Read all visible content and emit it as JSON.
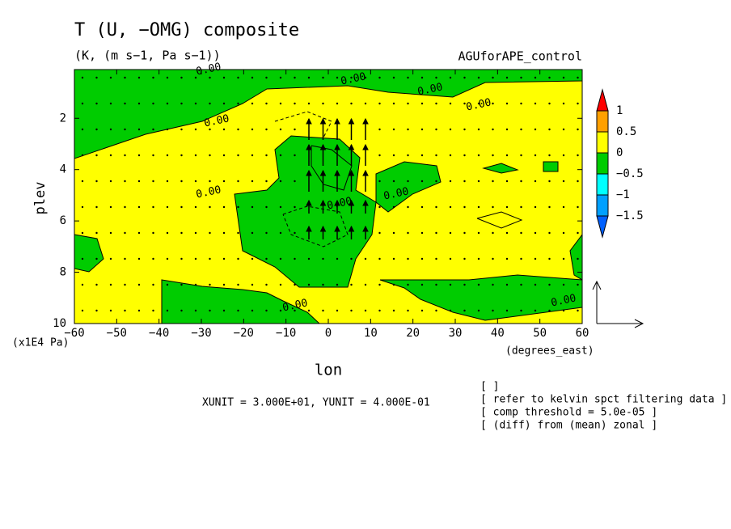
{
  "chart_data": {
    "type": "contour",
    "title": "T (U, −OMG) composite",
    "subtitle": "(K, (m s−1, Pa s−1))",
    "dataset": "AGUforAPE_control",
    "xlabel": "lon",
    "xunit": "(degrees_east)",
    "ylabel": "plev",
    "yunit": "(x1E4 Pa)",
    "xlim": [
      -60,
      60
    ],
    "xticks": [
      {
        "value": -60,
        "label": "−60"
      },
      {
        "value": -50,
        "label": "−50"
      },
      {
        "value": -40,
        "label": "−40"
      },
      {
        "value": -30,
        "label": "−30"
      },
      {
        "value": -20,
        "label": "−20"
      },
      {
        "value": -10,
        "label": "−10"
      },
      0,
      10,
      20,
      30,
      40,
      50,
      60
    ],
    "ylim": [
      10,
      0.1
    ],
    "yticks": [
      2,
      4,
      6,
      8,
      10
    ],
    "colorbar": {
      "levels": [
        1,
        0.5,
        0,
        {
          "value": -0.5,
          "label": "−0.5"
        },
        {
          "value": -1,
          "label": "−1"
        },
        {
          "value": -1.5,
          "label": "−1.5"
        }
      ],
      "colors": [
        "#ff0000",
        "#ffa000",
        "#ffff00",
        "#00cc00",
        "#00ffff",
        "#00a0ff",
        "#0060ff"
      ]
    },
    "contour_labels": {
      "values": [
        0,
        0,
        0,
        0,
        0,
        0,
        0,
        0,
        0,
        0
      ],
      "value_labels": [
        "0.00",
        "0.00",
        "0.00",
        "0.00",
        "0.00",
        "0.00",
        "0.00",
        "0.00",
        "0.00",
        "0.00"
      ]
    },
    "vector_units": "XUNIT = 3.000E+01, YUNIT = 4.000E-01",
    "notes": [
      "[ ]",
      "[ refer to kelvin spct filtering data ]",
      "[ comp threshold = 5.0e-05 ]",
      "[ (diff) from (mean) zonal ]"
    ]
  }
}
